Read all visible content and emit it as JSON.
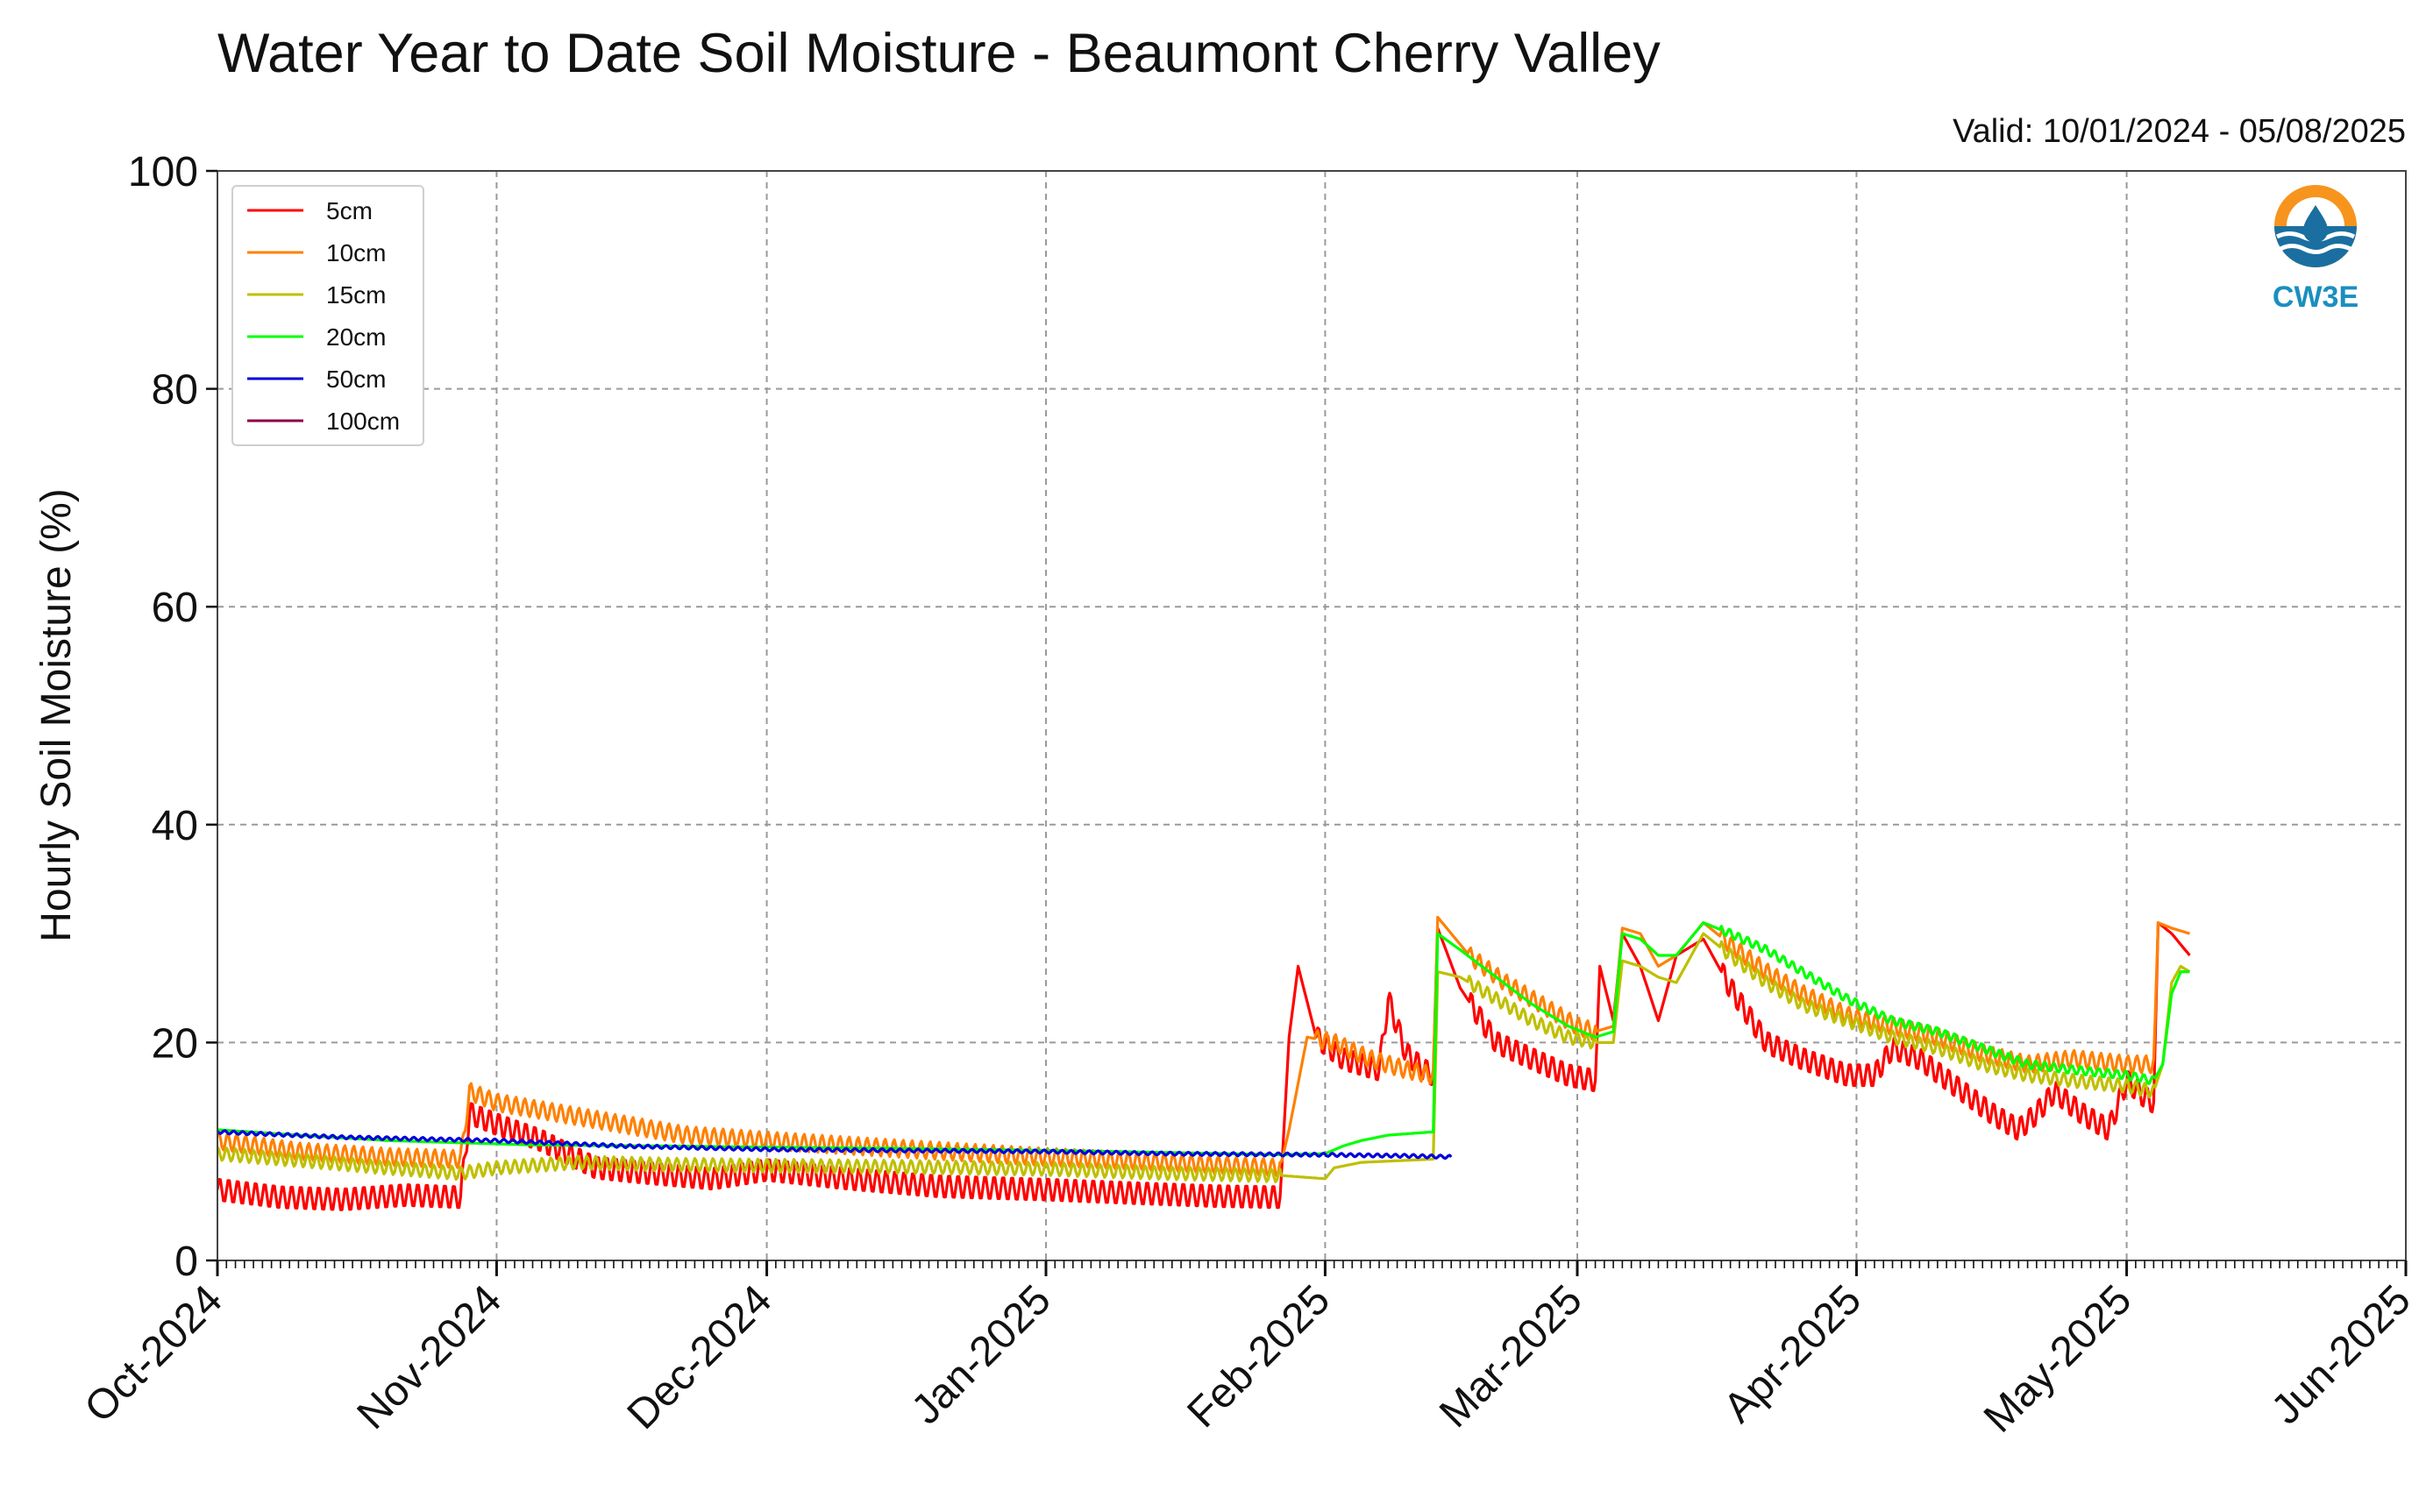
{
  "chart_data": {
    "type": "line",
    "title": "Water Year to Date Soil Moisture - Beaumont Cherry Valley",
    "subtitle": "Valid: 10/01/2024 - 05/08/2025",
    "ylabel": "Hourly Soil Moisture (%)",
    "xlabel": "",
    "ylim": [
      0,
      100
    ],
    "xlim": [
      "2024-10-01",
      "2025-06-01"
    ],
    "yticks": [
      0,
      20,
      40,
      60,
      80,
      100
    ],
    "xticks": [
      {
        "date": "2024-10-01",
        "label": "Oct-2024"
      },
      {
        "date": "2024-11-01",
        "label": "Nov-2024"
      },
      {
        "date": "2024-12-01",
        "label": "Dec-2024"
      },
      {
        "date": "2025-01-01",
        "label": "Jan-2025"
      },
      {
        "date": "2025-02-01",
        "label": "Feb-2025"
      },
      {
        "date": "2025-03-01",
        "label": "Mar-2025"
      },
      {
        "date": "2025-04-01",
        "label": "Apr-2025"
      },
      {
        "date": "2025-05-01",
        "label": "May-2025"
      },
      {
        "date": "2025-06-01",
        "label": "Jun-2025"
      }
    ],
    "grid": true,
    "legend_position": "top-left",
    "logo_text": "CW3E",
    "series": [
      {
        "name": "5cm",
        "color": "#ff0000",
        "points": [
          [
            "2024-10-01",
            6.5
          ],
          [
            "2024-10-08",
            5.8
          ],
          [
            "2024-10-15",
            5.6
          ],
          [
            "2024-10-22",
            6.0
          ],
          [
            "2024-10-28",
            5.8
          ],
          [
            "2024-10-29",
            13.5
          ],
          [
            "2024-11-01",
            12.5
          ],
          [
            "2024-11-06",
            11.0
          ],
          [
            "2024-11-12",
            8.5
          ],
          [
            "2024-11-18",
            8.0
          ],
          [
            "2024-11-25",
            7.5
          ],
          [
            "2024-12-01",
            8.3
          ],
          [
            "2024-12-10",
            7.5
          ],
          [
            "2024-12-20",
            6.8
          ],
          [
            "2025-01-01",
            6.5
          ],
          [
            "2025-01-10",
            6.2
          ],
          [
            "2025-01-20",
            5.9
          ],
          [
            "2025-01-27",
            5.8
          ],
          [
            "2025-01-28",
            20.5
          ],
          [
            "2025-01-29",
            27.0
          ],
          [
            "2025-01-31",
            20.5
          ],
          [
            "2025-02-03",
            18.5
          ],
          [
            "2025-02-07",
            17.5
          ],
          [
            "2025-02-08",
            24.0
          ],
          [
            "2025-02-10",
            19.0
          ],
          [
            "2025-02-12",
            17.5
          ],
          [
            "2025-02-13",
            17.0
          ],
          [
            "2025-02-13T12:00",
            30.5
          ],
          [
            "2025-02-16",
            25.0
          ],
          [
            "2025-02-20",
            20.0
          ],
          [
            "2025-02-24",
            18.5
          ],
          [
            "2025-02-28",
            17.0
          ],
          [
            "2025-03-03",
            16.5
          ],
          [
            "2025-03-03T12:00",
            27.0
          ],
          [
            "2025-03-05",
            22.0
          ],
          [
            "2025-03-06",
            30.0
          ],
          [
            "2025-03-08",
            27.0
          ],
          [
            "2025-03-10",
            22.0
          ],
          [
            "2025-03-12",
            28.0
          ],
          [
            "2025-03-15",
            29.5
          ],
          [
            "2025-03-18",
            25.0
          ],
          [
            "2025-03-22",
            20.0
          ],
          [
            "2025-03-26",
            18.5
          ],
          [
            "2025-03-31",
            17.0
          ],
          [
            "2025-04-03",
            17.0
          ],
          [
            "2025-04-05",
            19.5
          ],
          [
            "2025-04-08",
            18.5
          ],
          [
            "2025-04-12",
            16.0
          ],
          [
            "2025-04-16",
            13.5
          ],
          [
            "2025-04-19",
            12.0
          ],
          [
            "2025-04-21",
            13.5
          ],
          [
            "2025-04-23",
            15.5
          ],
          [
            "2025-04-26",
            13.5
          ],
          [
            "2025-04-29",
            12.0
          ],
          [
            "2025-05-01",
            16.5
          ],
          [
            "2025-05-03",
            15.0
          ],
          [
            "2025-05-04",
            14.5
          ],
          [
            "2025-05-04T12:00",
            31.0
          ],
          [
            "2025-05-06",
            30.0
          ],
          [
            "2025-05-08",
            28.0
          ]
        ],
        "osc_amp": 1.1,
        "osc_ranges": [
          [
            "2024-10-01",
            "2025-01-27"
          ],
          [
            "2025-01-31",
            "2025-02-13"
          ],
          [
            "2025-02-17",
            "2025-03-03"
          ],
          [
            "2025-03-17",
            "2025-05-04"
          ]
        ]
      },
      {
        "name": "10cm",
        "color": "#ff8000",
        "points": [
          [
            "2024-10-01",
            11.0
          ],
          [
            "2024-10-10",
            10.0
          ],
          [
            "2024-10-20",
            9.5
          ],
          [
            "2024-10-28",
            9.3
          ],
          [
            "2024-10-29",
            15.5
          ],
          [
            "2024-11-01",
            14.5
          ],
          [
            "2024-11-08",
            13.5
          ],
          [
            "2024-11-15",
            12.5
          ],
          [
            "2024-11-22",
            11.5
          ],
          [
            "2024-12-01",
            11.0
          ],
          [
            "2024-12-15",
            10.3
          ],
          [
            "2025-01-01",
            9.5
          ],
          [
            "2025-01-15",
            9.0
          ],
          [
            "2025-01-27",
            8.5
          ],
          [
            "2025-01-28",
            12.0
          ],
          [
            "2025-01-30",
            20.5
          ],
          [
            "2025-02-02",
            20.0
          ],
          [
            "2025-02-06",
            18.5
          ],
          [
            "2025-02-10",
            17.5
          ],
          [
            "2025-02-13",
            17.0
          ],
          [
            "2025-02-13T12:00",
            31.5
          ],
          [
            "2025-02-17",
            28.0
          ],
          [
            "2025-02-21",
            25.5
          ],
          [
            "2025-02-25",
            23.5
          ],
          [
            "2025-03-01",
            21.5
          ],
          [
            "2025-03-03",
            21.0
          ],
          [
            "2025-03-05",
            21.5
          ],
          [
            "2025-03-06",
            30.5
          ],
          [
            "2025-03-08",
            30.0
          ],
          [
            "2025-03-10",
            27.0
          ],
          [
            "2025-03-12",
            28.0
          ],
          [
            "2025-03-15",
            31.0
          ],
          [
            "2025-03-18",
            29.0
          ],
          [
            "2025-03-22",
            26.5
          ],
          [
            "2025-03-26",
            24.5
          ],
          [
            "2025-03-31",
            22.5
          ],
          [
            "2025-04-05",
            21.5
          ],
          [
            "2025-04-10",
            20.5
          ],
          [
            "2025-04-15",
            19.0
          ],
          [
            "2025-04-20",
            18.0
          ],
          [
            "2025-04-25",
            18.5
          ],
          [
            "2025-05-01",
            18.0
          ],
          [
            "2025-05-04",
            18.0
          ],
          [
            "2025-05-04T12:00",
            31.0
          ],
          [
            "2025-05-06",
            30.5
          ],
          [
            "2025-05-08",
            30.0
          ]
        ],
        "osc_amp": 0.8,
        "osc_ranges": [
          [
            "2024-10-01",
            "2025-01-27"
          ],
          [
            "2025-01-31",
            "2025-02-13"
          ],
          [
            "2025-02-17",
            "2025-03-03"
          ],
          [
            "2025-03-17",
            "2025-05-04"
          ]
        ]
      },
      {
        "name": "15cm",
        "color": "#bfbf00",
        "points": [
          [
            "2024-10-01",
            9.8
          ],
          [
            "2024-10-10",
            9.2
          ],
          [
            "2024-10-20",
            8.5
          ],
          [
            "2024-10-28",
            8.0
          ],
          [
            "2024-11-01",
            8.5
          ],
          [
            "2024-11-10",
            9.0
          ],
          [
            "2024-11-20",
            8.8
          ],
          [
            "2024-12-01",
            8.7
          ],
          [
            "2024-12-15",
            8.6
          ],
          [
            "2025-01-01",
            8.4
          ],
          [
            "2025-01-15",
            8.0
          ],
          [
            "2025-01-27",
            7.8
          ],
          [
            "2025-02-01",
            7.5
          ],
          [
            "2025-02-02",
            8.5
          ],
          [
            "2025-02-05",
            9.0
          ],
          [
            "2025-02-13",
            9.3
          ],
          [
            "2025-02-13T12:00",
            26.5
          ],
          [
            "2025-02-16",
            26.0
          ],
          [
            "2025-02-20",
            24.0
          ],
          [
            "2025-02-24",
            22.0
          ],
          [
            "2025-02-28",
            20.5
          ],
          [
            "2025-03-03",
            20.0
          ],
          [
            "2025-03-05",
            20.0
          ],
          [
            "2025-03-06",
            27.5
          ],
          [
            "2025-03-08",
            27.0
          ],
          [
            "2025-03-10",
            26.0
          ],
          [
            "2025-03-12",
            25.5
          ],
          [
            "2025-03-15",
            30.0
          ],
          [
            "2025-03-18",
            28.0
          ],
          [
            "2025-03-22",
            25.5
          ],
          [
            "2025-03-26",
            23.5
          ],
          [
            "2025-03-31",
            22.0
          ],
          [
            "2025-04-05",
            20.5
          ],
          [
            "2025-04-10",
            19.5
          ],
          [
            "2025-04-15",
            18.0
          ],
          [
            "2025-04-20",
            17.0
          ],
          [
            "2025-04-25",
            16.5
          ],
          [
            "2025-05-01",
            16.0
          ],
          [
            "2025-05-04",
            15.5
          ],
          [
            "2025-05-05",
            18.0
          ],
          [
            "2025-05-06",
            25.5
          ],
          [
            "2025-05-07",
            27.0
          ],
          [
            "2025-05-08",
            26.5
          ]
        ],
        "osc_amp": 0.6,
        "osc_ranges": [
          [
            "2024-10-01",
            "2025-01-27"
          ],
          [
            "2025-02-17",
            "2025-03-03"
          ],
          [
            "2025-03-17",
            "2025-05-04"
          ]
        ]
      },
      {
        "name": "20cm",
        "color": "#00ff00",
        "points": [
          [
            "2024-10-01",
            12.0
          ],
          [
            "2024-10-10",
            11.5
          ],
          [
            "2024-10-20",
            11.0
          ],
          [
            "2024-10-28",
            10.8
          ],
          [
            "2024-11-05",
            10.6
          ],
          [
            "2024-11-20",
            10.5
          ],
          [
            "2024-12-01",
            10.4
          ],
          [
            "2024-12-15",
            10.3
          ],
          [
            "2025-01-01",
            10.1
          ],
          [
            "2025-01-15",
            9.9
          ],
          [
            "2025-01-27",
            9.7
          ],
          [
            "2025-02-01",
            9.8
          ],
          [
            "2025-02-03",
            10.5
          ],
          [
            "2025-02-05",
            11.0
          ],
          [
            "2025-02-08",
            11.5
          ],
          [
            "2025-02-13",
            11.8
          ],
          [
            "2025-02-13T12:00",
            30.0
          ],
          [
            "2025-02-16",
            28.5
          ],
          [
            "2025-02-20",
            26.0
          ],
          [
            "2025-02-24",
            23.5
          ],
          [
            "2025-02-28",
            21.5
          ],
          [
            "2025-03-03",
            20.5
          ],
          [
            "2025-03-05",
            21.0
          ],
          [
            "2025-03-06",
            30.0
          ],
          [
            "2025-03-08",
            29.5
          ],
          [
            "2025-03-10",
            28.0
          ],
          [
            "2025-03-12",
            28.0
          ],
          [
            "2025-03-15",
            31.0
          ],
          [
            "2025-03-18",
            30.0
          ],
          [
            "2025-03-22",
            28.5
          ],
          [
            "2025-03-26",
            26.5
          ],
          [
            "2025-03-31",
            24.0
          ],
          [
            "2025-04-05",
            22.0
          ],
          [
            "2025-04-10",
            21.0
          ],
          [
            "2025-04-15",
            19.5
          ],
          [
            "2025-04-20",
            18.0
          ],
          [
            "2025-04-25",
            17.5
          ],
          [
            "2025-05-01",
            17.0
          ],
          [
            "2025-05-04",
            16.5
          ],
          [
            "2025-05-05",
            18.0
          ],
          [
            "2025-05-06",
            24.5
          ],
          [
            "2025-05-07",
            26.5
          ],
          [
            "2025-05-08",
            26.5
          ]
        ],
        "osc_amp": 0.4,
        "osc_ranges": [
          [
            "2025-03-17",
            "2025-05-04"
          ]
        ]
      },
      {
        "name": "50cm",
        "color": "#0000dd",
        "points": [
          [
            "2024-10-01",
            11.8
          ],
          [
            "2024-10-15",
            11.3
          ],
          [
            "2024-11-01",
            11.0
          ],
          [
            "2024-11-15",
            10.5
          ],
          [
            "2024-12-01",
            10.2
          ],
          [
            "2024-12-15",
            10.1
          ],
          [
            "2025-01-01",
            10.0
          ],
          [
            "2025-01-15",
            9.8
          ],
          [
            "2025-02-01",
            9.7
          ],
          [
            "2025-02-10",
            9.6
          ],
          [
            "2025-02-15",
            9.5
          ]
        ],
        "osc_amp": 0.15,
        "osc_ranges": [
          [
            "2024-10-01",
            "2025-02-15"
          ]
        ]
      },
      {
        "name": "100cm",
        "color": "#8b0045",
        "points": []
      }
    ]
  }
}
